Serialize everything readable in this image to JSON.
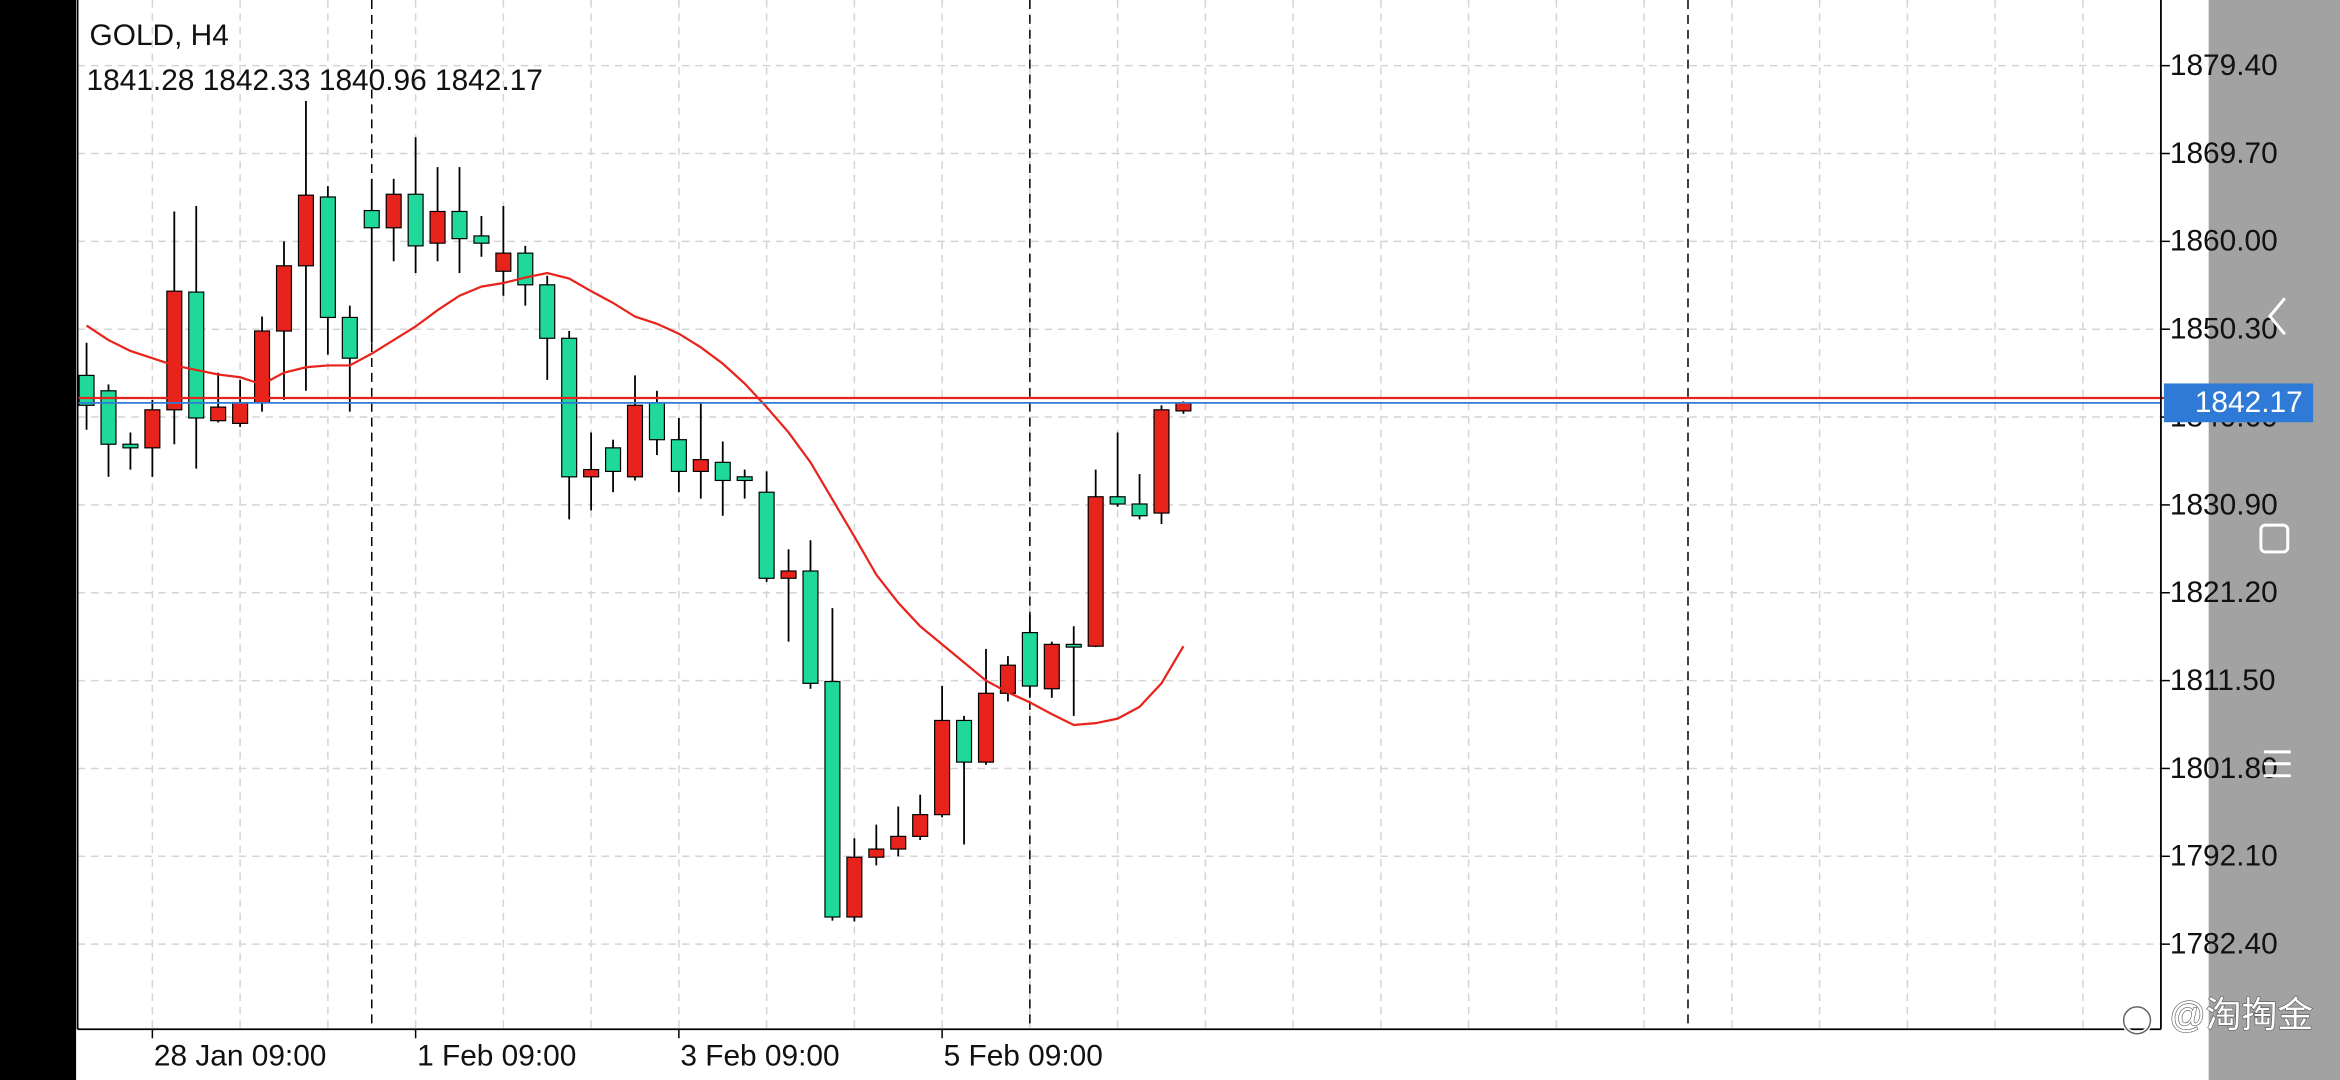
{
  "chart_data": {
    "type": "candlestick",
    "title": "GOLD, H4",
    "categories": [
      null,
      null,
      null,
      "28 Jan 09:00",
      null,
      null,
      null,
      null,
      null,
      null,
      null,
      null,
      null,
      null,
      null,
      "1 Feb 09:00",
      null,
      null,
      null,
      null,
      null,
      null,
      null,
      null,
      null,
      null,
      null,
      "3 Feb 09:00",
      null,
      null,
      null,
      null,
      null,
      null,
      null,
      null,
      null,
      null,
      null,
      "5 Feb 09:00",
      null,
      null,
      null,
      null,
      null,
      null,
      null,
      null,
      null,
      null,
      null
    ],
    "open": [
      1845.2,
      1843.5,
      1837.6,
      1837.2,
      1841.4,
      1854.4,
      1840.2,
      1839.9,
      1842.2,
      1850.1,
      1857.3,
      1864.9,
      1851.6,
      1863.4,
      1861.5,
      1865.2,
      1859.8,
      1863.3,
      1860.6,
      1856.7,
      1858.7,
      1855.2,
      1849.3,
      1834.0,
      1837.2,
      1834.0,
      1842.2,
      1838.1,
      1834.6,
      1835.6,
      1834.0,
      1832.3,
      1822.8,
      1823.6,
      1811.4,
      1785.4,
      1792.0,
      1792.9,
      1794.3,
      1796.7,
      1807.1,
      1802.5,
      1810.1,
      1816.8,
      1810.6,
      1815.5,
      1815.3,
      1831.8,
      1831.0,
      1830.0,
      1841.28
    ],
    "high": [
      1848.8,
      1844.2,
      1838.9,
      1842.5,
      1863.3,
      1863.9,
      1845.5,
      1844.7,
      1851.7,
      1860.0,
      1875.5,
      1866.1,
      1852.9,
      1866.9,
      1866.9,
      1871.5,
      1868.2,
      1868.2,
      1862.8,
      1863.9,
      1859.5,
      1856.2,
      1850.1,
      1838.9,
      1838.1,
      1845.2,
      1843.5,
      1840.5,
      1842.2,
      1837.9,
      1834.8,
      1834.6,
      1826.0,
      1827.0,
      1819.5,
      1794.1,
      1795.6,
      1797.6,
      1798.9,
      1810.9,
      1807.6,
      1815.0,
      1814.2,
      1818.8,
      1815.8,
      1817.5,
      1834.8,
      1838.9,
      1834.3,
      1841.9,
      1842.33
    ],
    "low": [
      1839.2,
      1834.0,
      1834.8,
      1834.0,
      1837.6,
      1834.9,
      1840.0,
      1839.5,
      1841.2,
      1842.5,
      1843.5,
      1847.5,
      1841.2,
      1848.8,
      1857.8,
      1856.5,
      1857.8,
      1856.5,
      1858.3,
      1854.0,
      1852.9,
      1844.7,
      1829.3,
      1830.3,
      1832.3,
      1833.6,
      1836.4,
      1832.3,
      1831.6,
      1829.7,
      1831.6,
      1822.4,
      1815.8,
      1810.6,
      1785.0,
      1784.9,
      1791.1,
      1792.1,
      1793.9,
      1796.4,
      1793.4,
      1802.2,
      1809.2,
      1809.6,
      1809.6,
      1807.6,
      1815.2,
      1830.7,
      1829.3,
      1828.8,
      1840.96
    ],
    "close": [
      1841.9,
      1837.6,
      1837.2,
      1841.4,
      1854.5,
      1840.5,
      1841.7,
      1842.2,
      1850.1,
      1857.3,
      1865.1,
      1851.6,
      1847.1,
      1861.5,
      1865.2,
      1859.5,
      1863.3,
      1860.3,
      1859.8,
      1858.7,
      1855.2,
      1849.3,
      1834.0,
      1834.8,
      1834.6,
      1841.9,
      1838.1,
      1834.6,
      1835.9,
      1833.6,
      1833.6,
      1822.8,
      1823.6,
      1811.2,
      1785.4,
      1792.0,
      1792.9,
      1794.3,
      1796.7,
      1807.1,
      1802.5,
      1810.1,
      1813.2,
      1810.9,
      1815.5,
      1815.2,
      1831.8,
      1831.0,
      1829.7,
      1841.4,
      1842.17
    ],
    "up_color": "#e8231c",
    "down_color": "#1fd99a",
    "ma": {
      "color": "#e8231c",
      "values": [
        1850.7,
        1849.1,
        1847.9,
        1847.1,
        1846.3,
        1845.8,
        1845.3,
        1845.0,
        1844.2,
        1845.5,
        1846.1,
        1846.3,
        1846.3,
        1847.6,
        1849.1,
        1850.6,
        1852.4,
        1854.0,
        1855.0,
        1855.4,
        1856.0,
        1856.5,
        1855.9,
        1854.5,
        1853.2,
        1851.7,
        1850.9,
        1849.8,
        1848.3,
        1846.5,
        1844.3,
        1841.7,
        1838.9,
        1835.6,
        1831.5,
        1827.4,
        1823.2,
        1820.1,
        1817.5,
        1815.5,
        1813.5,
        1811.5,
        1810.2,
        1809.1,
        1807.8,
        1806.6,
        1806.8,
        1807.3,
        1808.6,
        1811.2,
        1815.3
      ]
    },
    "bid": {
      "value": 1842.17,
      "color": "#2f7ad6"
    },
    "ask": {
      "value": 1842.7,
      "color": "#e8231c"
    },
    "ylim": [
      1773.0,
      1886.65
    ],
    "yticks": [
      {
        "value": 1879.4,
        "label": "1879.40"
      },
      {
        "value": 1869.7,
        "label": "1869.70"
      },
      {
        "value": 1860.0,
        "label": "1860.00"
      },
      {
        "value": 1850.3,
        "label": "1850.30"
      },
      {
        "value": 1840.6,
        "label": "1840.60"
      },
      {
        "value": 1830.9,
        "label": "1830.90"
      },
      {
        "value": 1821.2,
        "label": "1821.20"
      },
      {
        "value": 1811.5,
        "label": "1811.50"
      },
      {
        "value": 1801.8,
        "label": "1801.80"
      },
      {
        "value": 1792.1,
        "label": "1792.10"
      },
      {
        "value": 1782.4,
        "label": "1782.40"
      }
    ],
    "grid": true
  },
  "watermark": "@淘掏金"
}
